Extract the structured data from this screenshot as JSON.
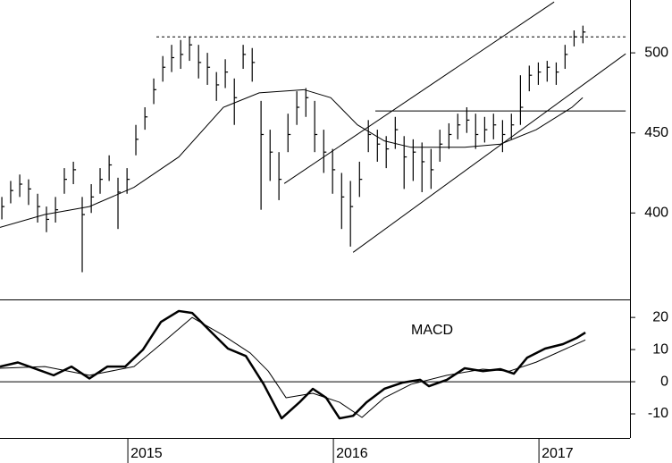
{
  "chart_data": [
    {
      "type": "ohlc",
      "color": "#000000",
      "xlim": [
        2014.378,
        2017.443
      ],
      "ylim": [
        346,
        533
      ],
      "yticks": [
        400,
        450,
        500
      ],
      "x": [
        2014.387,
        2014.43,
        2014.474,
        2014.517,
        2014.561,
        2014.604,
        2014.648,
        2014.691,
        2014.735,
        2014.778,
        2014.822,
        2014.865,
        2014.909,
        2014.952,
        2014.996,
        2015.039,
        2015.083,
        2015.126,
        2015.17,
        2015.213,
        2015.257,
        2015.3,
        2015.344,
        2015.387,
        2015.431,
        2015.474,
        2015.518,
        2015.561,
        2015.605,
        2015.648,
        2015.692,
        2015.735,
        2015.779,
        2015.822,
        2015.866,
        2015.909,
        2015.953,
        2015.996,
        2016.04,
        2016.083,
        2016.127,
        2016.17,
        2016.214,
        2016.257,
        2016.301,
        2016.344,
        2016.388,
        2016.431,
        2016.475,
        2016.518,
        2016.562,
        2016.605,
        2016.649,
        2016.692,
        2016.736,
        2016.779,
        2016.823,
        2016.866,
        2016.91,
        2016.953,
        2016.997,
        2017.04,
        2017.084,
        2017.127,
        2017.171,
        2017.214
      ],
      "high": [
        410,
        420,
        424,
        421,
        412,
        404,
        410,
        428,
        432,
        410,
        418,
        428,
        436,
        422,
        428,
        455,
        466,
        484,
        498,
        505,
        508,
        510,
        505,
        500,
        488,
        496,
        484,
        505,
        503,
        470,
        452,
        438,
        462,
        476,
        478,
        470,
        452,
        440,
        425,
        420,
        432,
        458,
        452,
        448,
        460,
        448,
        446,
        444,
        440,
        452,
        456,
        462,
        466,
        462,
        460,
        462,
        458,
        462,
        486,
        492,
        494,
        495,
        494,
        505,
        514,
        517
      ],
      "low": [
        396,
        406,
        410,
        405,
        394,
        388,
        394,
        412,
        418,
        363,
        400,
        412,
        420,
        390,
        412,
        436,
        452,
        468,
        482,
        488,
        490,
        495,
        484,
        480,
        470,
        478,
        455,
        490,
        482,
        402,
        420,
        408,
        438,
        455,
        460,
        438,
        425,
        412,
        390,
        379,
        410,
        438,
        432,
        428,
        440,
        415,
        420,
        413,
        415,
        432,
        440,
        446,
        450,
        440,
        444,
        446,
        438,
        446,
        455,
        476,
        480,
        482,
        480,
        490,
        504,
        506
      ],
      "close": [
        404,
        414,
        418,
        415,
        404,
        396,
        402,
        421,
        427,
        399,
        410,
        421,
        430,
        413,
        421,
        446,
        460,
        477,
        491,
        497,
        499,
        505,
        494,
        491,
        480,
        488,
        472,
        499,
        494,
        449,
        438,
        421,
        449,
        466,
        472,
        449,
        438,
        427,
        410,
        404,
        421,
        449,
        443,
        440,
        452,
        435,
        438,
        432,
        427,
        443,
        449,
        455,
        458,
        449,
        452,
        455,
        449,
        455,
        466,
        486,
        488,
        491,
        488,
        499,
        510,
        513
      ],
      "lines": [
        {
          "x": [
            2014.378,
            2014.596,
            2014.813,
            2015.03,
            2015.248,
            2015.465,
            2015.639,
            2015.857,
            2015.987,
            2016.117,
            2016.248,
            2016.378,
            2016.639,
            2016.813,
            2016.987,
            2017.161,
            2017.213
          ],
          "y": [
            391,
            399,
            404,
            416,
            435,
            466,
            475,
            477,
            472,
            455,
            445,
            441,
            441,
            443,
            452,
            466,
            472
          ],
          "dashed": false
        },
        {
          "x": [
            2015.139,
            2017.422
          ],
          "y": [
            510,
            510
          ],
          "dashed": true
        },
        {
          "x": [
            2016.204,
            2017.422
          ],
          "y": [
            463.7,
            463.7
          ],
          "dashed": false
        },
        {
          "x": [
            2016.096,
            2017.422
          ],
          "y": [
            375.4,
            499.4
          ],
          "dashed": false
        },
        {
          "x": [
            2015.761,
            2017.074
          ],
          "y": [
            418.4,
            531.8
          ],
          "dashed": false
        }
      ]
    },
    {
      "type": "line",
      "annotation": "MACD",
      "zero_line": true,
      "xlim": [
        2014.378,
        2017.443
      ],
      "ylim": [
        -17.5,
        25.6
      ],
      "yticks": [
        -10,
        0,
        10,
        20
      ],
      "xticks": [
        2015,
        2016,
        2017
      ],
      "series": [
        {
          "color": "#000000",
          "width": 2.5,
          "x": [
            2014.378,
            2014.465,
            2014.552,
            2014.639,
            2014.726,
            2014.813,
            2014.9,
            2014.987,
            2015.074,
            2015.161,
            2015.248,
            2015.313,
            2015.4,
            2015.487,
            2015.574,
            2015.661,
            2015.748,
            2015.835,
            2015.9,
            2015.965,
            2016.03,
            2016.096,
            2016.161,
            2016.248,
            2016.335,
            2016.422,
            2016.465,
            2016.552,
            2016.639,
            2016.726,
            2016.813,
            2016.878,
            2016.943,
            2017.03,
            2017.117,
            2017.183,
            2017.226
          ],
          "values": [
            4.7,
            6,
            4,
            2,
            4.7,
            1,
            4.7,
            4.7,
            10,
            18.6,
            22,
            21.4,
            15.8,
            10.3,
            8,
            -0.8,
            -11.4,
            -6.4,
            -2.2,
            -5,
            -11.4,
            -10.6,
            -6.4,
            -2.2,
            -0.3,
            0.6,
            -1.4,
            0.6,
            4.2,
            3.3,
            3.9,
            2.5,
            7.5,
            10.3,
            11.7,
            13.6,
            15.3
          ]
        },
        {
          "color": "#000000",
          "width": 1,
          "x": [
            2014.378,
            2014.596,
            2014.813,
            2015.03,
            2015.161,
            2015.313,
            2015.465,
            2015.596,
            2015.683,
            2015.77,
            2015.9,
            2016.03,
            2016.139,
            2016.248,
            2016.378,
            2016.552,
            2016.726,
            2016.857,
            2016.987,
            2017.226
          ],
          "values": [
            4.2,
            4.7,
            2,
            4.7,
            11.7,
            20,
            14.4,
            8.9,
            3.3,
            -5,
            -3.6,
            -6.4,
            -11.1,
            -5,
            -0.8,
            2,
            3.9,
            3.3,
            6.1,
            13
          ]
        }
      ]
    }
  ]
}
